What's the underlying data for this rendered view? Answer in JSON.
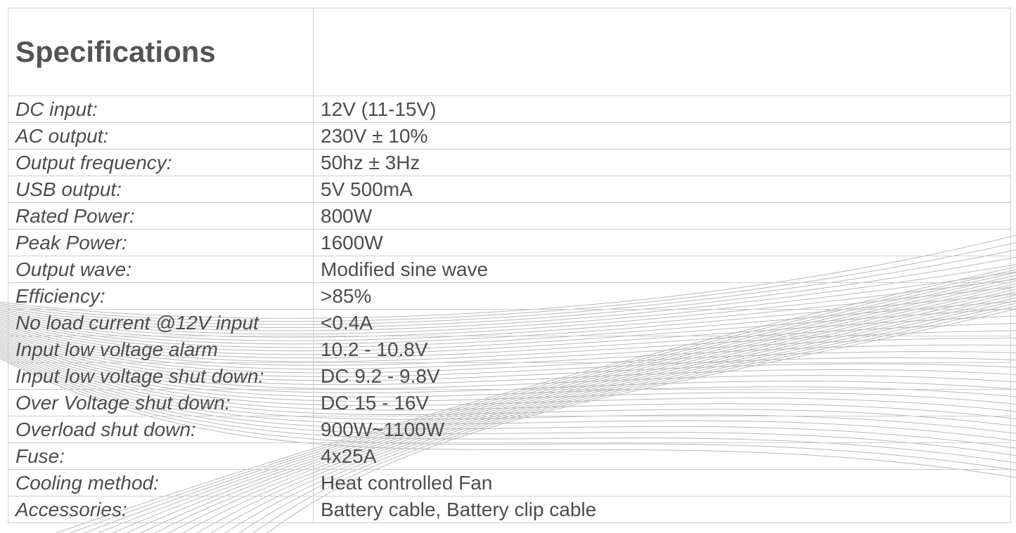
{
  "title": "Specifications",
  "specs": [
    {
      "label": "DC input:",
      "value": "12V (11-15V)"
    },
    {
      "label": "AC output:",
      "value": "230V ± 10%"
    },
    {
      "label": "Output frequency:",
      "value": "50hz ± 3Hz"
    },
    {
      "label": "USB output:",
      "value": "5V 500mA"
    },
    {
      "label": "Rated Power:",
      "value": "800W"
    },
    {
      "label": "Peak Power:",
      "value": "1600W"
    },
    {
      "label": "Output wave:",
      "value": "Modified sine wave"
    },
    {
      "label": "Efficiency:",
      "value": ">85%"
    },
    {
      "label": "No load current @12V input",
      "value": "<0.4A"
    },
    {
      "label": "Input low voltage alarm",
      "value": "10.2 - 10.8V"
    },
    {
      "label": "Input low voltage shut down:",
      "value": "DC 9.2 - 9.8V"
    },
    {
      "label": "Over Voltage shut down:",
      "value": "DC 15 - 16V"
    },
    {
      "label": "Overload shut down:",
      "value": "900W~1100W"
    },
    {
      "label": "Fuse:",
      "value": "4x25A"
    },
    {
      "label": "Cooling method:",
      "value": "Heat controlled Fan"
    },
    {
      "label": "Accessories:",
      "value": "Battery cable, Battery clip cable"
    }
  ],
  "colors": {
    "text": "#4d4d4d",
    "border": "#cfcfcf",
    "wave": "#b8b8b8"
  }
}
